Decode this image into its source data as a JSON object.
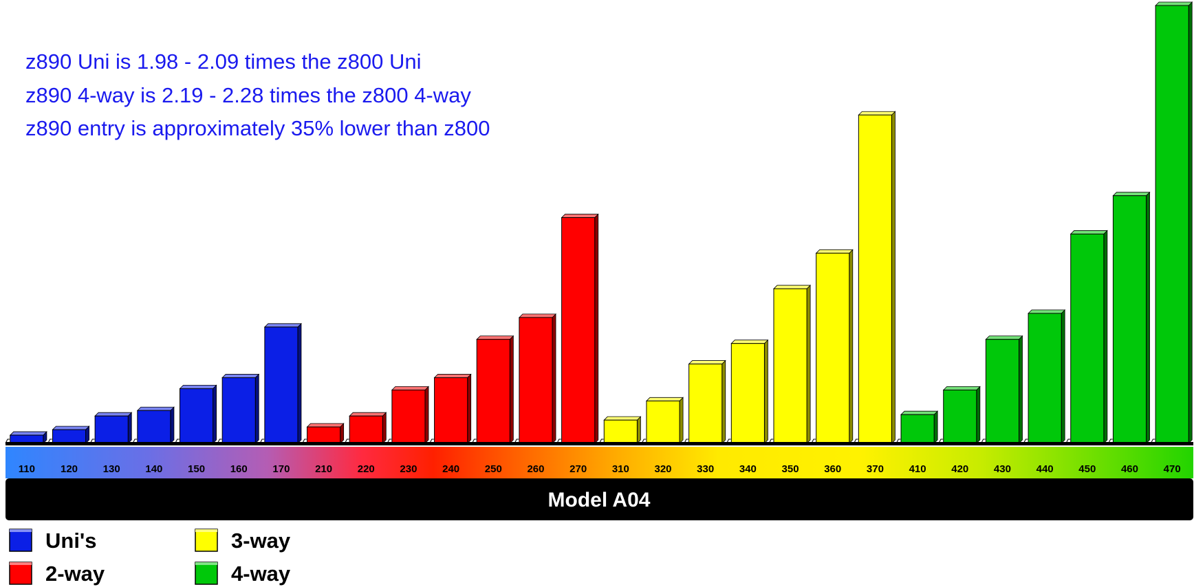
{
  "chart_data": {
    "type": "bar",
    "title": "",
    "xlabel": "Model A04",
    "ylabel": "",
    "ylim": [
      0,
      640
    ],
    "grid": false,
    "legend_position": "bottom-left",
    "categories": [
      "110",
      "120",
      "130",
      "140",
      "150",
      "160",
      "170",
      "210",
      "220",
      "230",
      "240",
      "250",
      "260",
      "270",
      "310",
      "320",
      "330",
      "340",
      "350",
      "360",
      "370",
      "410",
      "420",
      "430",
      "440",
      "450",
      "460",
      "470"
    ],
    "groups": [
      "Uni's",
      "Uni's",
      "Uni's",
      "Uni's",
      "Uni's",
      "Uni's",
      "Uni's",
      "2-way",
      "2-way",
      "2-way",
      "2-way",
      "2-way",
      "2-way",
      "2-way",
      "3-way",
      "3-way",
      "3-way",
      "3-way",
      "3-way",
      "3-way",
      "3-way",
      "4-way",
      "4-way",
      "4-way",
      "4-way",
      "4-way",
      "4-way",
      "4-way"
    ],
    "values": [
      12,
      20,
      40,
      48,
      80,
      96,
      170,
      24,
      40,
      78,
      96,
      152,
      184,
      330,
      34,
      62,
      116,
      146,
      226,
      278,
      480,
      42,
      78,
      152,
      190,
      306,
      362,
      640
    ],
    "annotations": [
      "z890 Uni is 1.98 - 2.09 times the z800 Uni",
      "z890 4-way is 2.19 - 2.28 times the z800 4-way",
      "z890 entry is approximately 35% lower than z800"
    ],
    "legend": [
      {
        "label": "Uni's",
        "color": "#0b1fe6"
      },
      {
        "label": "2-way",
        "color": "#ff0000"
      },
      {
        "label": "3-way",
        "color": "#ffff00"
      },
      {
        "label": "4-way",
        "color": "#00c80a"
      }
    ],
    "colors": {
      "Uni's": "#0b1fe6",
      "2-way": "#ff0000",
      "3-way": "#ffff00",
      "4-way": "#00c80a"
    }
  }
}
